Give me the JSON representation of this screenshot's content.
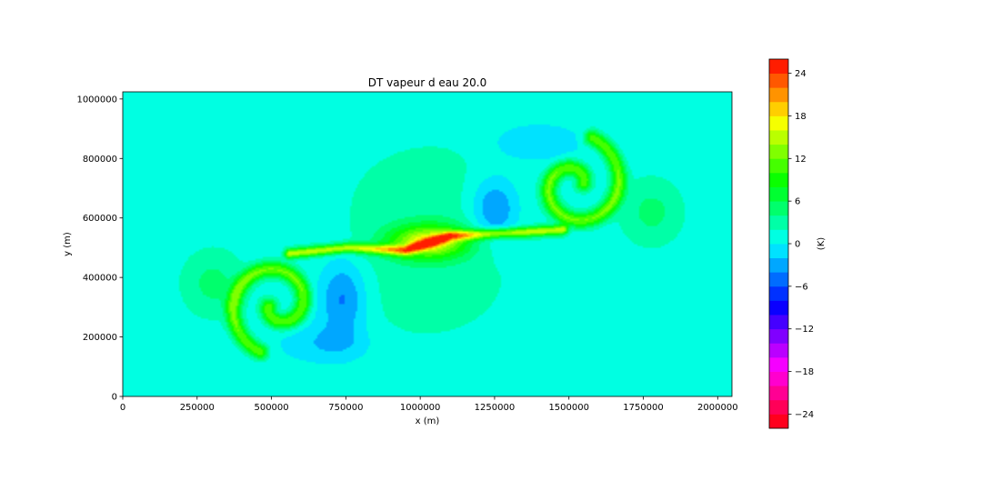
{
  "chart_data": {
    "type": "heatmap",
    "subtype": "filled-contour",
    "title": "DT vapeur d eau 20.0",
    "xlabel": "x (m)",
    "ylabel": "y (m)",
    "xlim": [
      0,
      2048000
    ],
    "ylim": [
      0,
      1024000
    ],
    "xticks": [
      0,
      250000,
      500000,
      750000,
      1000000,
      1250000,
      1500000,
      1750000,
      2000000
    ],
    "xtick_labels": [
      "0",
      "250000",
      "500000",
      "750000",
      "1000000",
      "1250000",
      "1500000",
      "1750000",
      "2000000"
    ],
    "yticks": [
      0,
      200000,
      400000,
      600000,
      800000,
      1000000
    ],
    "ytick_labels": [
      "0",
      "200000",
      "400000",
      "600000",
      "800000",
      "1000000"
    ],
    "colormap": "hsv",
    "colorbar": {
      "label": "(K)",
      "range": [
        -26,
        26
      ],
      "ticks": [
        -24,
        -18,
        -12,
        -6,
        0,
        6,
        12,
        18,
        24
      ],
      "tick_labels": [
        "−24",
        "−18",
        "−12",
        "−6",
        "0",
        "6",
        "12",
        "18",
        "24"
      ],
      "levels": 26
    },
    "background_value": 0.5,
    "features": [
      {
        "shape": "spiral",
        "cx": 520000,
        "cy": 310000,
        "r": 170000,
        "start_angle_deg": 250,
        "turns": 1.15,
        "value": 11,
        "direction": -1
      },
      {
        "shape": "spiral",
        "cx": 1520000,
        "cy": 710000,
        "r": 170000,
        "start_angle_deg": 70,
        "turns": 1.15,
        "value": 11,
        "direction": -1
      },
      {
        "shape": "band",
        "points": [
          [
            560000,
            480000
          ],
          [
            760000,
            500000
          ],
          [
            950000,
            490000
          ],
          [
            1100000,
            540000
          ],
          [
            1300000,
            550000
          ],
          [
            1480000,
            560000
          ]
        ],
        "value": 14
      },
      {
        "shape": "blob",
        "cx": 1030000,
        "cy": 520000,
        "rx": 130000,
        "ry": 55000,
        "value": 15
      },
      {
        "shape": "blob",
        "cx": 740000,
        "cy": 330000,
        "rx": 80000,
        "ry": 130000,
        "value": -6
      },
      {
        "shape": "blob",
        "cx": 1250000,
        "cy": 630000,
        "rx": 80000,
        "ry": 110000,
        "value": -6
      },
      {
        "shape": "blob",
        "cx": 690000,
        "cy": 180000,
        "rx": 140000,
        "ry": 60000,
        "value": -3
      },
      {
        "shape": "blob",
        "cx": 1380000,
        "cy": 850000,
        "rx": 140000,
        "ry": 60000,
        "value": -3
      },
      {
        "shape": "blob",
        "cx": 1000000,
        "cy": 350000,
        "rx": 400000,
        "ry": 250000,
        "value": 2
      },
      {
        "shape": "blob",
        "cx": 1050000,
        "cy": 700000,
        "rx": 400000,
        "ry": 250000,
        "value": 2
      },
      {
        "shape": "blob",
        "cx": 300000,
        "cy": 380000,
        "rx": 110000,
        "ry": 120000,
        "value": 4
      },
      {
        "shape": "blob",
        "cx": 1780000,
        "cy": 620000,
        "rx": 110000,
        "ry": 120000,
        "value": 4
      }
    ]
  }
}
